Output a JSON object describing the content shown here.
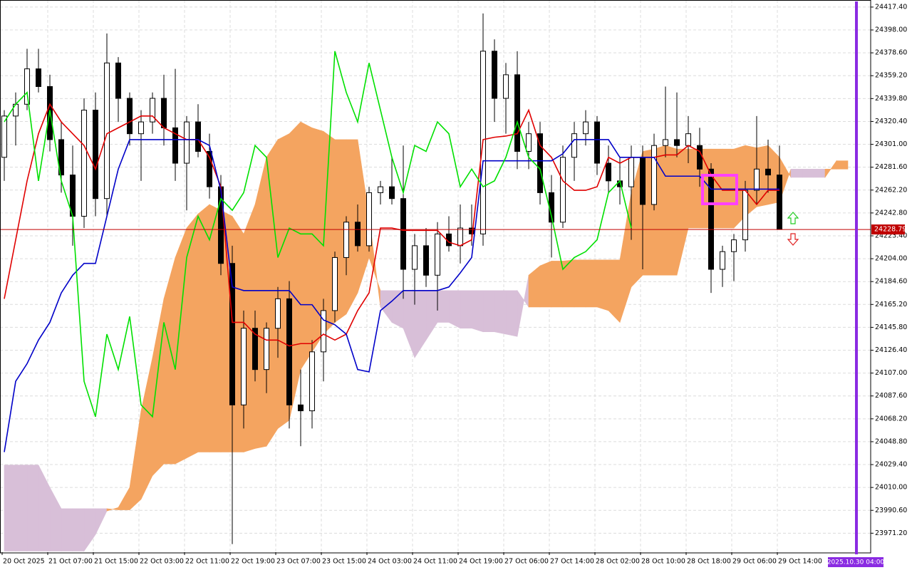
{
  "chart_data": {
    "type": "candlestick",
    "categories": [
      "20 Oct 2025",
      null,
      null,
      null,
      "21 Oct 07:00",
      null,
      null,
      null,
      "21 Oct 15:00",
      null,
      null,
      null,
      "22 Oct 03:00",
      null,
      null,
      null,
      "22 Oct 11:00",
      null,
      null,
      null,
      "22 Oct 19:00",
      null,
      null,
      null,
      "23 Oct 07:00",
      null,
      null,
      null,
      "23 Oct 15:00",
      null,
      null,
      null,
      "24 Oct 03:00",
      null,
      null,
      null,
      "24 Oct 11:00",
      null,
      null,
      null,
      "24 Oct 19:00",
      null,
      null,
      null,
      "27 Oct 06:00",
      null,
      null,
      null,
      "27 Oct 14:00",
      null,
      null,
      null,
      "28 Oct 02:00",
      null,
      null,
      null,
      "28 Oct 10:00",
      null,
      null,
      null,
      "28 Oct 18:00",
      null,
      null,
      null,
      "29 Oct 06:00",
      null,
      null,
      null,
      "29 Oct 14:00",
      null,
      null,
      null,
      null,
      null,
      null
    ],
    "open": [
      24290,
      24325,
      24335,
      24365,
      24350,
      24305,
      24275,
      24240,
      24330,
      24255,
      24370,
      24340,
      24310,
      24320,
      24340,
      24315,
      24285,
      24320,
      24295,
      24265,
      24200,
      24080,
      24145,
      24110,
      24145,
      24170,
      24080,
      24075,
      24125,
      24160,
      24205,
      24235,
      24215,
      24260,
      24265,
      24255,
      24195,
      24215,
      24190,
      24225,
      24215,
      24230,
      24225,
      24380,
      24340,
      24360,
      24295,
      24310,
      24260,
      24235,
      24290,
      24310,
      24320,
      24285,
      24270,
      24265,
      24290,
      24250,
      24300,
      24305,
      24300,
      24300,
      24280,
      24195,
      24210,
      24220,
      24262,
      24280,
      24275,
      null,
      null,
      null,
      null,
      null,
      null
    ],
    "high": [
      24330,
      24345,
      24382,
      24382,
      24360,
      24320,
      24300,
      24340,
      24345,
      24395,
      24375,
      24345,
      24330,
      24345,
      24360,
      24365,
      24325,
      24335,
      24310,
      24275,
      24215,
      24160,
      24160,
      24150,
      24180,
      24185,
      24110,
      24135,
      24170,
      24210,
      24240,
      24250,
      24265,
      24270,
      24290,
      24300,
      24225,
      24230,
      24235,
      24240,
      24250,
      24250,
      24412,
      24390,
      24370,
      24380,
      24320,
      24320,
      24275,
      24300,
      24320,
      24330,
      24325,
      24300,
      24290,
      24300,
      24300,
      24310,
      24350,
      24345,
      24325,
      24315,
      24285,
      24215,
      24225,
      24270,
      24325,
      24305,
      24300,
      null,
      null,
      null,
      null,
      null,
      null
    ],
    "low": [
      24270,
      24300,
      24330,
      24345,
      24295,
      24260,
      24215,
      24230,
      24240,
      24240,
      24320,
      24300,
      24270,
      24310,
      24300,
      24270,
      24245,
      24290,
      24255,
      24190,
      23962,
      24060,
      24100,
      24090,
      24120,
      24060,
      24045,
      24060,
      24100,
      24150,
      24190,
      24210,
      24210,
      24250,
      24250,
      24170,
      24165,
      24180,
      24160,
      24210,
      24200,
      24215,
      24215,
      24320,
      24310,
      24280,
      24280,
      24250,
      24205,
      24230,
      24270,
      24300,
      24275,
      24260,
      24250,
      24220,
      24195,
      24245,
      24290,
      24290,
      24285,
      24265,
      24175,
      24180,
      24185,
      24210,
      24250,
      24260,
      24228.79,
      null,
      null,
      null,
      null,
      null,
      null
    ],
    "close": [
      24325,
      24335,
      24365,
      24350,
      24305,
      24275,
      24240,
      24330,
      24255,
      24370,
      24340,
      24310,
      24320,
      24340,
      24315,
      24285,
      24320,
      24295,
      24265,
      24200,
      24080,
      24145,
      24110,
      24145,
      24170,
      24080,
      24075,
      24125,
      24160,
      24205,
      24235,
      24215,
      24260,
      24265,
      24255,
      24195,
      24215,
      24190,
      24225,
      24215,
      24230,
      24225,
      24380,
      24340,
      24360,
      24295,
      24310,
      24260,
      24235,
      24290,
      24310,
      24320,
      24285,
      24270,
      24265,
      24290,
      24250,
      24300,
      24305,
      24300,
      24310,
      24280,
      24195,
      24210,
      24220,
      24262,
      24280,
      24275,
      24228.79,
      null,
      null,
      null,
      null,
      null,
      null
    ],
    "lines": [
      {
        "color": "#e00000",
        "values": [
          24170,
          24220,
          24270,
          24310,
          24335,
          24320,
          24310,
          24300,
          24280,
          24310,
          24315,
          24320,
          24325,
          24325,
          24315,
          24310,
          24305,
          24305,
          24290,
          24265,
          24150,
          24150,
          24140,
          24135,
          24135,
          24130,
          24132,
          24132,
          24140,
          24135,
          24140,
          24160,
          24175,
          24230,
          24230,
          24228,
          24228,
          24228,
          24228,
          24218,
          24215,
          24220,
          24305,
          24307,
          24308,
          24310,
          24330,
          24300,
          24290,
          24270,
          24262,
          24262,
          24265,
          24290,
          24285,
          24290,
          24290,
          24290,
          24292,
          24292,
          24300,
          24295,
          24275,
          24262,
          24262,
          24262,
          24250,
          24262,
          24262,
          null,
          null,
          null,
          null,
          null,
          null
        ]
      },
      {
        "color": "#0000c8",
        "values": [
          24040,
          24100,
          24115,
          24135,
          24150,
          24175,
          24190,
          24200,
          24200,
          24240,
          24280,
          24305,
          24305,
          24305,
          24305,
          24305,
          24305,
          24305,
          24300,
          24262,
          24180,
          24177,
          24177,
          24177,
          24177,
          24177,
          24165,
          24165,
          24152,
          24148,
          24140,
          24110,
          24108,
          24160,
          24168,
          24177,
          24177,
          24177,
          24177,
          24180,
          24192,
          24205,
          24287,
          24287,
          24287,
          24287,
          24287,
          24287,
          24287,
          24293,
          24305,
          24305,
          24305,
          24305,
          24290,
          24290,
          24290,
          24290,
          24274,
          24274,
          24274,
          24274,
          24263,
          24263,
          24263,
          24263,
          24263,
          24263,
          24263,
          null,
          null,
          null,
          null,
          null,
          null
        ]
      },
      {
        "color": "#00e000",
        "values": [
          24320,
          24335,
          24345,
          24270,
          24330,
          24270,
          24240,
          24100,
          24070,
          24140,
          24110,
          24155,
          24080,
          24070,
          24150,
          24110,
          24205,
          24240,
          24220,
          24255,
          24245,
          24260,
          24300,
          24290,
          24205,
          24230,
          24225,
          24225,
          24215,
          24380,
          24345,
          24320,
          24370,
          24330,
          24290,
          24260,
          24300,
          24295,
          24320,
          24310,
          24265,
          24280,
          24265,
          24270,
          24290,
          24320,
          24290,
          24280,
          24240,
          24195,
          24205,
          24210,
          24220,
          24260,
          24270,
          24230,
          null,
          null,
          null,
          null,
          null,
          null,
          null,
          null,
          null,
          null,
          null,
          null,
          null,
          null,
          null,
          null,
          null,
          null,
          null
        ]
      }
    ],
    "cloud": {
      "span_a": [
        23956,
        23956,
        23956,
        23956,
        23956,
        23956,
        23956,
        23956,
        23970,
        23990,
        23993,
        24010,
        24075,
        24120,
        24170,
        24205,
        24230,
        24242,
        24250,
        24245,
        24240,
        24225,
        24250,
        24290,
        24305,
        24310,
        24320,
        24315,
        24312,
        24305,
        24305,
        24305,
        24240,
        24163,
        24150,
        24145,
        24120,
        24135,
        24150,
        24150,
        24145,
        24145,
        24142,
        24142,
        24140,
        24138,
        24190,
        24198,
        24202,
        24202,
        24203,
        24203,
        24203,
        24203,
        24203,
        24260,
        24295,
        24297,
        24300,
        24297,
        24297,
        24297,
        24297,
        24297,
        24297,
        24300,
        24298,
        24300,
        24290,
        24273,
        24273,
        24273,
        24273,
        24287,
        24287
      ],
      "span_b": [
        24029,
        24029,
        24029,
        24029,
        24010,
        23992,
        23992,
        23992,
        23992,
        23992,
        23991,
        23991,
        24000,
        24020,
        24030,
        24030,
        24035,
        24040,
        24040,
        24040,
        24040,
        24040,
        24043,
        24045,
        24060,
        24067,
        24110,
        24125,
        24140,
        24150,
        24157,
        24175,
        24205,
        24177,
        24177,
        24177,
        24177,
        24177,
        24177,
        24177,
        24177,
        24177,
        24177,
        24177,
        24177,
        24177,
        24163,
        24163,
        24163,
        24163,
        24163,
        24163,
        24163,
        24160,
        24150,
        24180,
        24190,
        24190,
        24190,
        24190,
        24230,
        24230,
        24230,
        24230,
        24230,
        24240,
        24248,
        24250,
        24252,
        24280,
        24280,
        24280,
        24280,
        24280,
        24280
      ],
      "up_color": "#f4a460",
      "down_color": "#d8bfd8"
    },
    "ylim": [
      23955.1,
      24423.4
    ],
    "yticks": [
      {
        "value": 24417.4,
        "label": "24417.40"
      },
      {
        "value": 24398,
        "label": "24398.00"
      },
      {
        "value": 24378.6,
        "label": "24378.60"
      },
      {
        "value": 24359.2,
        "label": "24359.20"
      },
      {
        "value": 24339.8,
        "label": "24339.80"
      },
      {
        "value": 24320.4,
        "label": "24320.40"
      },
      {
        "value": 24301,
        "label": "24301.00"
      },
      {
        "value": 24281.6,
        "label": "24281.60"
      },
      {
        "value": 24262.2,
        "label": "24262.20"
      },
      {
        "value": 24242.8,
        "label": "24242.80"
      },
      {
        "value": 24223.4,
        "label": "24223.40"
      },
      {
        "value": 24204,
        "label": "24204.00"
      },
      {
        "value": 24184.6,
        "label": "24184.60"
      },
      {
        "value": 24165.2,
        "label": "24165.20"
      },
      {
        "value": 24145.8,
        "label": "24145.80"
      },
      {
        "value": 24126.4,
        "label": "24126.40"
      },
      {
        "value": 24107,
        "label": "24107.00"
      },
      {
        "value": 24087.6,
        "label": "24087.60"
      },
      {
        "value": 24068.2,
        "label": "24068.20"
      },
      {
        "value": 24048.8,
        "label": "24048.80"
      },
      {
        "value": 24029.4,
        "label": "24029.40"
      },
      {
        "value": 24010,
        "label": "24010.00"
      },
      {
        "value": 23990.6,
        "label": "23990.60"
      },
      {
        "value": 23971.2,
        "label": "23971.20"
      }
    ],
    "current_price": 24228.79,
    "current_price_color": "#c00000",
    "highlight_time": "2025.10.30 04:00",
    "grid": true
  }
}
